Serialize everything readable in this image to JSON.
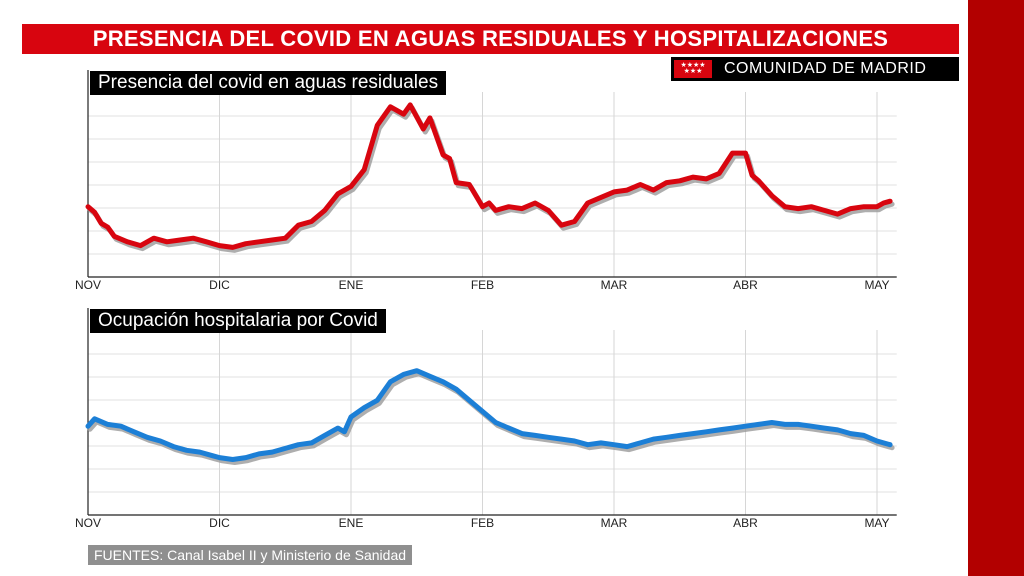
{
  "title": "PRESENCIA DEL COVID EN AGUAS RESIDUALES Y HOSPITALIZACIONES",
  "brand": {
    "flag_stars": "★★★★ ★★★",
    "name": "COMUNIDAD DE MADRID"
  },
  "source": "FUENTES: Canal Isabel II y Ministerio de Sanidad",
  "colors": {
    "accent": "#d8050f",
    "frame": "#b20000",
    "series1": "#d8050f",
    "series2": "#1c7fd6"
  },
  "chart_data": [
    {
      "type": "line",
      "title": "Presencia del covid en aguas residuales",
      "x_ticks": [
        "NOV",
        "DIC",
        "ENE",
        "FEB",
        "MAR",
        "ABR",
        "MAY"
      ],
      "x_range": [
        0,
        6.15
      ],
      "ylim": [
        0,
        100
      ],
      "grid": true,
      "series": [
        {
          "color": "#d8050f",
          "x": [
            0,
            0.05,
            0.1,
            0.15,
            0.2,
            0.3,
            0.4,
            0.5,
            0.6,
            0.7,
            0.8,
            0.9,
            1.0,
            1.1,
            1.2,
            1.3,
            1.4,
            1.5,
            1.6,
            1.7,
            1.8,
            1.9,
            2.0,
            2.1,
            2.2,
            2.3,
            2.4,
            2.45,
            2.55,
            2.6,
            2.7,
            2.75,
            2.8,
            2.9,
            3.0,
            3.05,
            3.1,
            3.2,
            3.3,
            3.4,
            3.5,
            3.6,
            3.7,
            3.8,
            3.9,
            4.0,
            4.1,
            4.2,
            4.3,
            4.4,
            4.5,
            4.6,
            4.7,
            4.8,
            4.9,
            5.0,
            5.05,
            5.1,
            5.2,
            5.3,
            5.4,
            5.5,
            5.6,
            5.7,
            5.8,
            5.9,
            6.0,
            6.05,
            6.1
          ],
          "values": [
            38,
            35,
            29,
            27,
            22,
            19,
            17,
            21,
            19,
            20,
            21,
            19,
            17,
            16,
            18,
            19,
            20,
            21,
            28,
            30,
            36,
            45,
            49,
            58,
            82,
            92,
            88,
            93,
            80,
            86,
            66,
            64,
            51,
            50,
            38,
            40,
            36,
            38,
            37,
            40,
            36,
            28,
            30,
            40,
            43,
            46,
            47,
            50,
            47,
            51,
            52,
            54,
            53,
            56,
            67,
            67,
            55,
            52,
            44,
            38,
            37,
            38,
            36,
            34,
            37,
            38,
            38,
            40,
            41
          ]
        }
      ]
    },
    {
      "type": "line",
      "title": "Ocupación hospitalaria por Covid",
      "x_ticks": [
        "NOV",
        "DIC",
        "ENE",
        "FEB",
        "MAR",
        "ABR",
        "MAY"
      ],
      "x_range": [
        0,
        6.15
      ],
      "ylim": [
        0,
        100
      ],
      "grid": true,
      "series": [
        {
          "color": "#1c7fd6",
          "x": [
            0,
            0.05,
            0.15,
            0.25,
            0.35,
            0.45,
            0.55,
            0.65,
            0.75,
            0.85,
            0.95,
            1.0,
            1.1,
            1.2,
            1.3,
            1.4,
            1.5,
            1.6,
            1.7,
            1.8,
            1.9,
            1.95,
            2.0,
            2.1,
            2.2,
            2.3,
            2.4,
            2.5,
            2.6,
            2.7,
            2.8,
            2.9,
            3.0,
            3.1,
            3.2,
            3.3,
            3.4,
            3.5,
            3.6,
            3.7,
            3.8,
            3.9,
            4.0,
            4.1,
            4.2,
            4.3,
            4.4,
            4.5,
            4.6,
            4.7,
            4.8,
            4.9,
            5.0,
            5.1,
            5.2,
            5.3,
            5.4,
            5.5,
            5.6,
            5.7,
            5.8,
            5.9,
            6.0,
            6.1
          ],
          "values": [
            48,
            52,
            49,
            48,
            45,
            42,
            40,
            37,
            35,
            34,
            32,
            31,
            30,
            31,
            33,
            34,
            36,
            38,
            39,
            43,
            47,
            45,
            53,
            58,
            62,
            72,
            76,
            78,
            75,
            72,
            68,
            62,
            56,
            50,
            47,
            44,
            43,
            42,
            41,
            40,
            38,
            39,
            38,
            37,
            39,
            41,
            42,
            43,
            44,
            45,
            46,
            47,
            48,
            49,
            50,
            49,
            49,
            48,
            47,
            46,
            44,
            43,
            40,
            38
          ]
        }
      ]
    }
  ]
}
